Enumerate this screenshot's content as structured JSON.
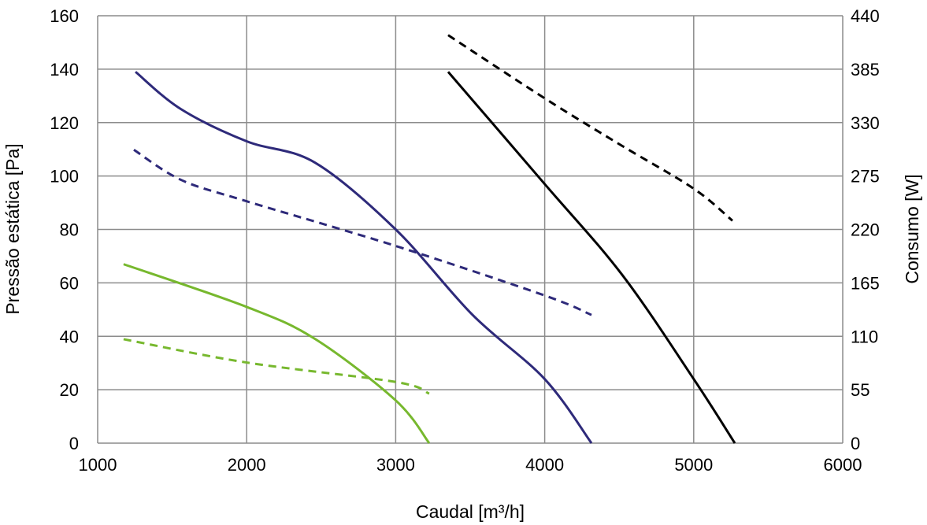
{
  "chart_data": {
    "type": "line",
    "title": "",
    "xlabel": "Caudal [m³/h]",
    "ylabel": "Pressão estática [Pa]",
    "y2label": "Consumo [W]",
    "xlim": [
      1000,
      6000
    ],
    "ylim": [
      0,
      160
    ],
    "y2lim": [
      0,
      440
    ],
    "grid": true,
    "xticks": [
      1000,
      2000,
      3000,
      4000,
      5000,
      6000
    ],
    "yticks": [
      0,
      20,
      40,
      60,
      80,
      100,
      120,
      140,
      160
    ],
    "y2ticks": [
      0,
      55,
      110,
      165,
      220,
      275,
      330,
      385,
      440
    ],
    "series": [
      {
        "axis": "left",
        "style": "solid",
        "color": "#2e2a7a",
        "x": [
          1254,
          1560,
          2000,
          2459,
          3000,
          3516,
          4000,
          4314
        ],
        "y": [
          139,
          125,
          113,
          105,
          80,
          48,
          24,
          0
        ]
      },
      {
        "axis": "right",
        "style": "dashed",
        "color": "#2e2a7a",
        "x": [
          1243,
          1560,
          2000,
          3000,
          4000,
          4314
        ],
        "y": [
          302,
          271,
          249,
          203,
          152,
          132
        ]
      },
      {
        "axis": "left",
        "style": "solid",
        "color": "#77b82e",
        "x": [
          1174,
          2000,
          2459,
          3000,
          3225
        ],
        "y": [
          67,
          51,
          39,
          16,
          0
        ]
      },
      {
        "axis": "right",
        "style": "dashed",
        "color": "#77b82e",
        "x": [
          1174,
          2000,
          3000,
          3225
        ],
        "y": [
          107,
          83,
          63,
          51
        ]
      },
      {
        "axis": "left",
        "style": "solid",
        "color": "#000000",
        "x": [
          3352,
          4000,
          4520,
          5000,
          5276
        ],
        "y": [
          139,
          97,
          63,
          24,
          0
        ]
      },
      {
        "axis": "right",
        "style": "dashed",
        "color": "#000000",
        "x": [
          3352,
          4000,
          4520,
          5000,
          5260
        ],
        "y": [
          420,
          355,
          306,
          262,
          229
        ]
      }
    ]
  }
}
